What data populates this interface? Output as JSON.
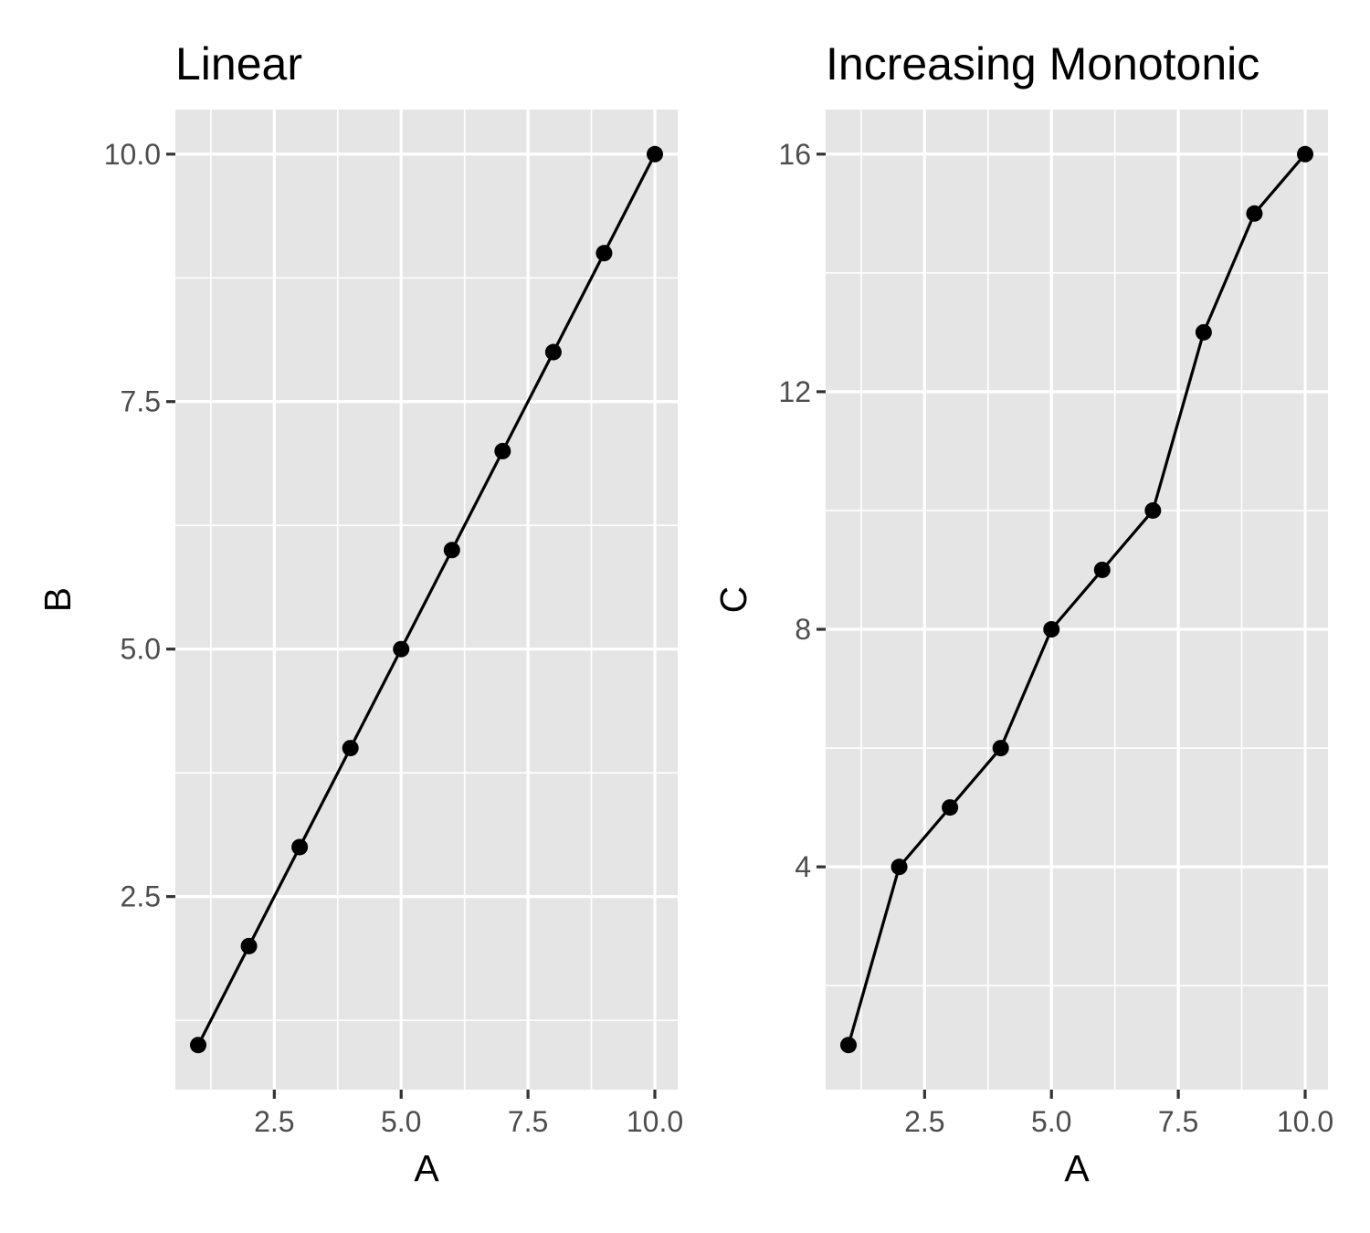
{
  "chart_data": [
    {
      "type": "line",
      "title": "Linear",
      "xlabel": "A",
      "ylabel": "B",
      "xlim": [
        0.55,
        10.45
      ],
      "ylim": [
        0.55,
        10.45
      ],
      "x_ticks": [
        2.5,
        5.0,
        7.5,
        10.0
      ],
      "x_tick_labels": [
        "2.5",
        "5.0",
        "7.5",
        "10.0"
      ],
      "y_ticks": [
        2.5,
        5.0,
        7.5,
        10.0
      ],
      "y_tick_labels": [
        "2.5",
        "5.0",
        "7.5",
        "10.0"
      ],
      "x_minor_ticks": [
        1.25,
        3.75,
        6.25,
        8.75
      ],
      "y_minor_ticks": [
        1.25,
        3.75,
        6.25,
        8.75
      ],
      "grid": true,
      "markers": true,
      "series": [
        {
          "x": [
            1,
            2,
            3,
            4,
            5,
            6,
            7,
            8,
            9,
            10
          ],
          "values": [
            1,
            2,
            3,
            4,
            5,
            6,
            7,
            8,
            9,
            10
          ]
        }
      ]
    },
    {
      "type": "line",
      "title": "Increasing Monotonic",
      "xlabel": "A",
      "ylabel": "C",
      "xlim": [
        0.55,
        10.45
      ],
      "ylim": [
        0.25,
        16.75
      ],
      "x_ticks": [
        2.5,
        5.0,
        7.5,
        10.0
      ],
      "x_tick_labels": [
        "2.5",
        "5.0",
        "7.5",
        "10.0"
      ],
      "y_ticks": [
        4,
        8,
        12,
        16
      ],
      "y_tick_labels": [
        "4",
        "8",
        "12",
        "16"
      ],
      "x_minor_ticks": [
        1.25,
        3.75,
        6.25,
        8.75
      ],
      "y_minor_ticks": [
        2,
        6,
        10,
        14
      ],
      "grid": true,
      "markers": true,
      "series": [
        {
          "x": [
            1,
            2,
            3,
            4,
            5,
            6,
            7,
            8,
            9,
            10
          ],
          "values": [
            1,
            4,
            5,
            6,
            8,
            9,
            10,
            13,
            15,
            16
          ]
        }
      ]
    }
  ]
}
